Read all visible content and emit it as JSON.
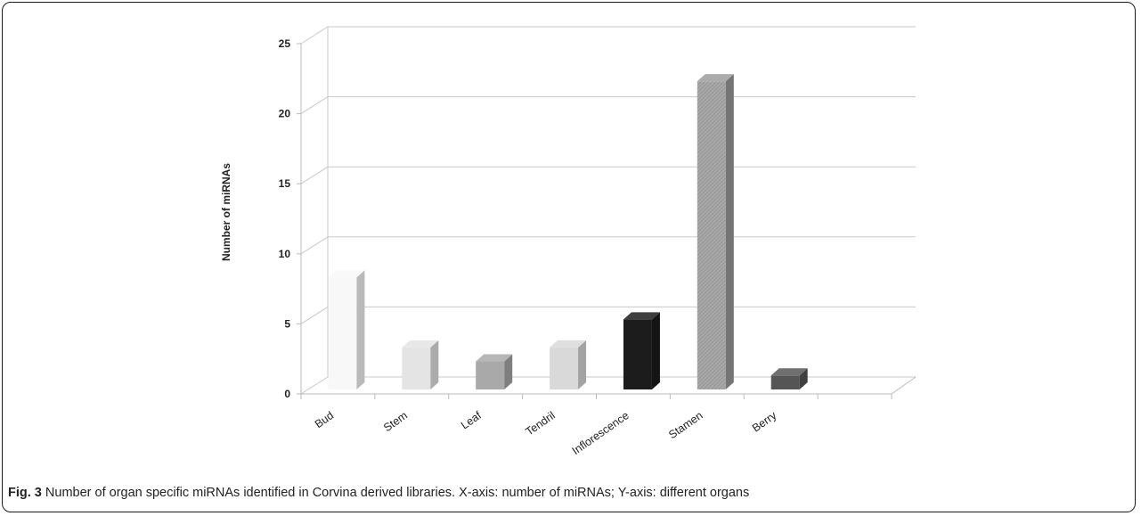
{
  "figure": {
    "label": "Fig. 3",
    "caption": "Number of organ specific miRNAs identified in Corvina derived libraries. X-axis: number of miRNAs; Y-axis: different organs"
  },
  "chart_data": {
    "type": "bar",
    "style": "3d",
    "ylabel": "Number of miRNAs",
    "xlabel": "",
    "ylim": [
      0,
      25
    ],
    "yticks": [
      0,
      5,
      10,
      15,
      20,
      25
    ],
    "grid": true,
    "legend": "none",
    "categories": [
      "Bud",
      "Stem",
      "Leaf",
      "Tendril",
      "Inflorescence",
      "Stamen",
      "Berry"
    ],
    "values": [
      8,
      3,
      2,
      3,
      5,
      22,
      1
    ],
    "colors": [
      "#f8f8f8",
      "#e4e4e4",
      "#a9a9a9",
      "#d9d9d9",
      "#1c1c1c",
      "#9c9c9c",
      "#555555"
    ]
  }
}
